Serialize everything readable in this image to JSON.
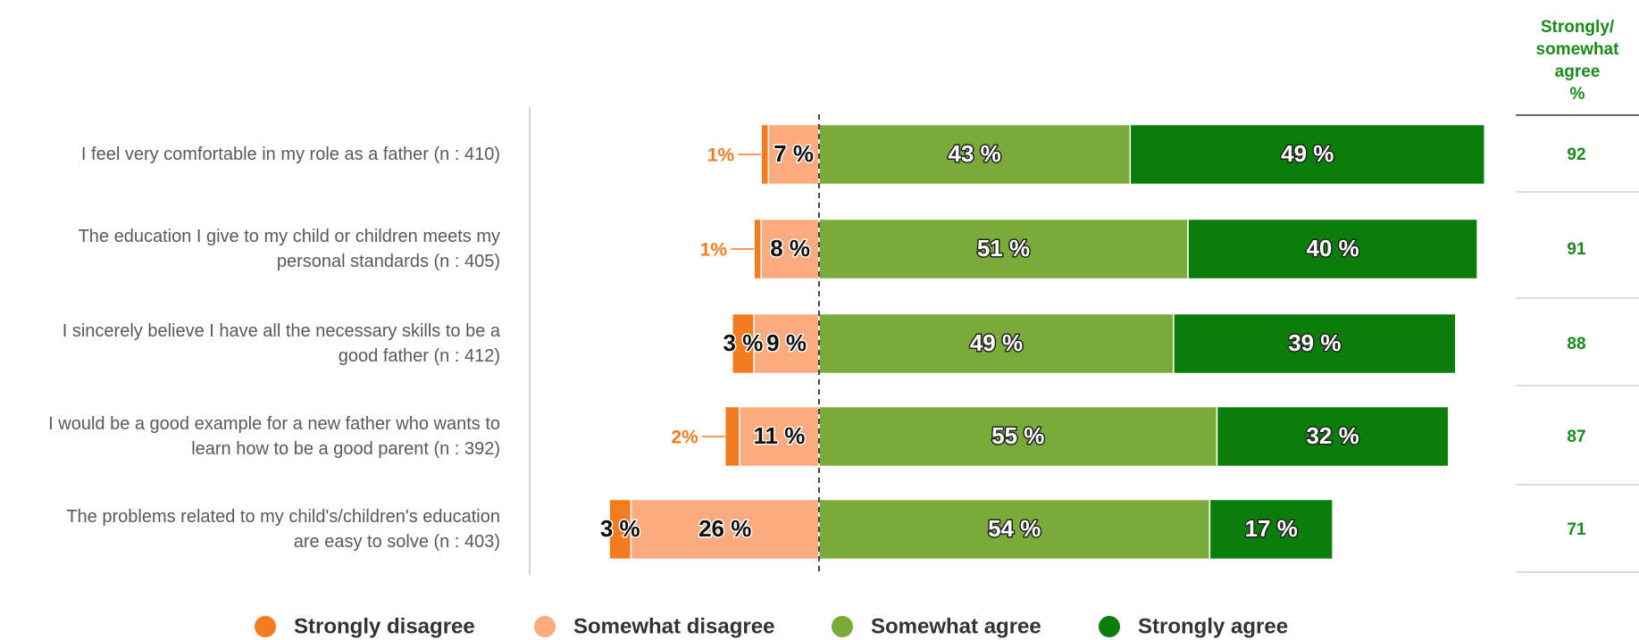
{
  "chart_data": {
    "type": "diverging-bar",
    "categories": [
      "I feel very comfortable in my role as a father (n : 410)",
      "The education I give to my child or children meets my\npersonal standards (n : 405)",
      "I sincerely believe I have all the necessary skills to be a\ngood father (n : 412)",
      "I would be a good example for a new father who wants to\nlearn how to be a good parent (n : 392)",
      "The problems related to my child's/children's education\nare easy to solve (n : 403)"
    ],
    "series": [
      {
        "name": "Strongly disagree",
        "color": "#f47c20",
        "values": [
          1,
          1,
          3,
          2,
          3
        ],
        "value_labels": [
          "1%",
          "1%",
          "3 %",
          "2%",
          "3 %"
        ]
      },
      {
        "name": "Somewhat disagree",
        "color": "#fbab7e",
        "values": [
          7,
          8,
          9,
          11,
          26
        ],
        "value_labels": [
          "7 %",
          "8 %",
          "9 %",
          "11 %",
          "26 %"
        ]
      },
      {
        "name": "Somewhat agree",
        "color": "#7aab3a",
        "values": [
          43,
          51,
          49,
          55,
          54
        ],
        "value_labels": [
          "43 %",
          "51 %",
          "49 %",
          "55 %",
          "54 %"
        ]
      },
      {
        "name": "Strongly agree",
        "color": "#0a7d0a",
        "values": [
          49,
          40,
          39,
          32,
          17
        ],
        "value_labels": [
          "49 %",
          "40 %",
          "39 %",
          "32 %",
          "17 %"
        ]
      }
    ],
    "summary": {
      "header": "Strongly/\nsomewhat\nagree\n%",
      "values": [
        92,
        91,
        88,
        87,
        71
      ]
    }
  }
}
